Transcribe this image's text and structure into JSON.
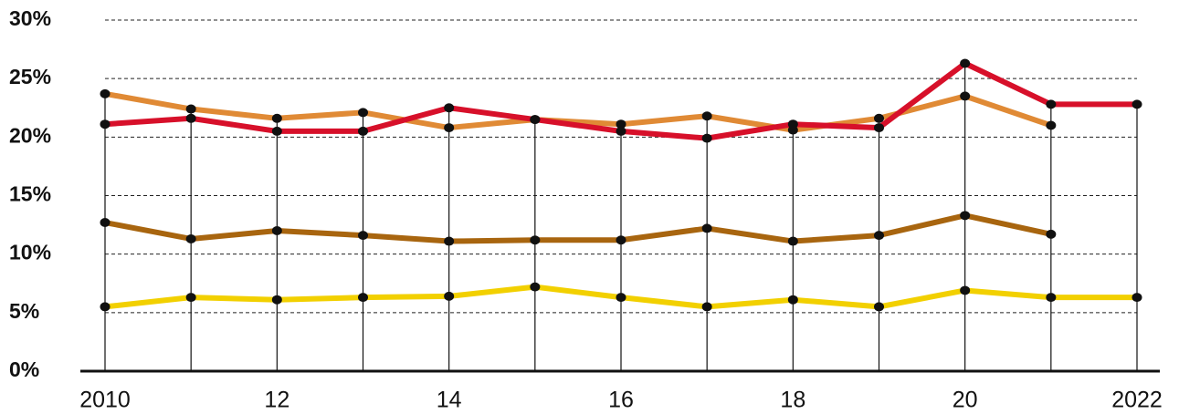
{
  "chart_data": {
    "type": "line",
    "x": [
      2010,
      2011,
      2012,
      2013,
      2014,
      2015,
      2016,
      2017,
      2018,
      2019,
      2020,
      2021,
      2022
    ],
    "xlim": [
      2010,
      2022
    ],
    "xticks": [
      2010,
      {
        "value": 2012,
        "label": "12"
      },
      {
        "value": 2014,
        "label": "14"
      },
      {
        "value": 2016,
        "label": "16"
      },
      {
        "value": 2018,
        "label": "18"
      },
      {
        "value": 2020,
        "label": "20"
      },
      2022
    ],
    "ylim": [
      0,
      30
    ],
    "yticks": [
      {
        "value": 0,
        "label": "0%"
      },
      {
        "value": 5,
        "label": "5%"
      },
      {
        "value": 10,
        "label": "10%"
      },
      {
        "value": 15,
        "label": "15%"
      },
      {
        "value": 20,
        "label": "20%"
      },
      {
        "value": 25,
        "label": "25%"
      },
      {
        "value": 30,
        "label": "30%"
      }
    ],
    "grid": true,
    "series": [
      {
        "color": "#e08a35",
        "values": [
          23.7,
          22.4,
          21.6,
          22.1,
          20.8,
          21.5,
          21.1,
          21.8,
          20.6,
          21.6,
          23.5,
          21.0,
          null
        ]
      },
      {
        "color": "#d7102a",
        "values": [
          21.1,
          21.6,
          20.5,
          20.5,
          22.5,
          21.5,
          20.5,
          19.9,
          21.1,
          20.8,
          26.3,
          22.8,
          22.8
        ]
      },
      {
        "color": "#a8650f",
        "values": [
          12.7,
          11.3,
          12.0,
          11.6,
          11.1,
          11.2,
          11.2,
          12.2,
          11.1,
          11.6,
          13.3,
          11.7,
          null
        ]
      },
      {
        "color": "#f2d000",
        "values": [
          5.5,
          6.3,
          6.1,
          6.3,
          6.4,
          7.2,
          6.3,
          5.5,
          6.1,
          5.5,
          6.9,
          6.3,
          6.3
        ]
      }
    ]
  }
}
